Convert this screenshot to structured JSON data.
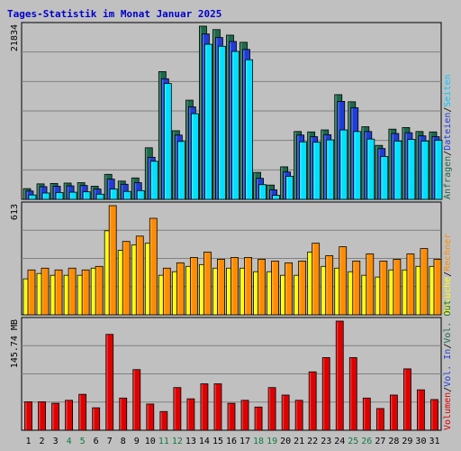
{
  "chart_data": {
    "type": "bar",
    "title": "Tages-Statistik im Monat Januar 2025",
    "x": [
      "1",
      "2",
      "3",
      "4",
      "5",
      "6",
      "7",
      "8",
      "9",
      "10",
      "11",
      "12",
      "13",
      "14",
      "15",
      "16",
      "17",
      "18",
      "19",
      "20",
      "21",
      "22",
      "23",
      "24",
      "25",
      "26",
      "27",
      "28",
      "29",
      "30",
      "31"
    ],
    "weekend_days": [
      "4",
      "5",
      "11",
      "12",
      "18",
      "19",
      "25",
      "26"
    ],
    "colors": {
      "anfragen": "#1a6b4a",
      "dateien": "#1e3ed6",
      "seiten": "#00e0ff",
      "besuche": "#ffff00",
      "rechner": "#ff8c00",
      "volumen": "#e00000",
      "weekday_label": "#000000",
      "weekend_label": "#107a40"
    },
    "panels": [
      {
        "id": "hits",
        "ymax": 21834,
        "ymax_label": "21834",
        "right_legend": [
          {
            "text": "Anfragen",
            "color": "#1a6b4a"
          },
          {
            "text": "/",
            "color": "#000000"
          },
          {
            "text": "Dateien",
            "color": "#1e3ed6"
          },
          {
            "text": "/",
            "color": "#000000"
          },
          {
            "text": "Seiten",
            "color": "#00c8ff"
          }
        ],
        "series": [
          {
            "name": "Anfragen",
            "values": [
              1350,
              1950,
              2000,
              2050,
              2100,
              1650,
              3150,
              2300,
              2700,
              6500,
              16100,
              8650,
              12500,
              21834,
              21400,
              20700,
              19800,
              3400,
              1800,
              4100,
              8550,
              8500,
              8750,
              13200,
              12300,
              9150,
              6800,
              8850,
              9050,
              8550,
              8500
            ]
          },
          {
            "name": "Dateien",
            "values": [
              1050,
              1600,
              1650,
              1700,
              1750,
              1300,
              2550,
              1900,
              2100,
              5300,
              15200,
              8100,
              11650,
              20850,
              20400,
              19900,
              18900,
              2650,
              1200,
              3450,
              8100,
              7900,
              8150,
              12350,
              11550,
              8550,
              6400,
              8300,
              8400,
              8000,
              7900
            ]
          },
          {
            "name": "Seiten",
            "values": [
              550,
              800,
              850,
              900,
              950,
              650,
              1300,
              1000,
              1100,
              4800,
              14600,
              7300,
              10800,
              19550,
              19300,
              18650,
              17600,
              1850,
              500,
              2900,
              7250,
              7200,
              7500,
              8750,
              8550,
              7600,
              5400,
              7350,
              7550,
              7350,
              7450
            ]
          }
        ]
      },
      {
        "id": "visits",
        "ymax": 613,
        "ymax_label": "613",
        "right_legend": [
          {
            "text": "Besuche",
            "color": "#ffff00"
          },
          {
            "text": "/",
            "color": "#000000"
          },
          {
            "text": "Rechner",
            "color": "#ff8c00"
          }
        ],
        "series": [
          {
            "name": "Besuche",
            "values": [
              202,
              232,
              222,
              222,
              222,
              262,
              472,
              362,
              392,
              402,
              222,
              242,
              272,
              282,
              262,
              262,
              262,
              242,
              242,
              222,
              222,
              352,
              272,
              262,
              242,
              222,
              212,
              252,
              252,
              272,
              272
            ]
          },
          {
            "name": "Rechner",
            "values": [
              252,
              262,
              252,
              262,
              252,
              272,
              613,
              412,
              442,
              542,
              262,
              292,
              322,
              352,
              312,
              322,
              322,
              312,
              302,
              292,
              302,
              402,
              332,
              382,
              302,
              342,
              302,
              312,
              342,
              372,
              312
            ]
          }
        ]
      },
      {
        "id": "volume",
        "ymax": 145.74,
        "ymax_label": "145.74 MB",
        "right_legend": [
          {
            "text": "Volumen",
            "color": "#e00000"
          },
          {
            "text": "/",
            "color": "#000000"
          },
          {
            "text": "Vol. In",
            "color": "#1e3ed6"
          },
          {
            "text": "/",
            "color": "#000000"
          },
          {
            "text": "Vol. Out",
            "color": "#1a6b4a"
          }
        ],
        "series": [
          {
            "name": "Volumen",
            "values": [
              38,
              38,
              36,
              40,
              48,
              30,
              128,
              43,
              81,
              35,
              25,
              57,
              42,
              62,
              62,
              36,
              40,
              31,
              57,
              47,
              40,
              78,
              97,
              145.74,
              97,
              43,
              29,
              47,
              82,
              54,
              41
            ]
          }
        ]
      }
    ]
  }
}
